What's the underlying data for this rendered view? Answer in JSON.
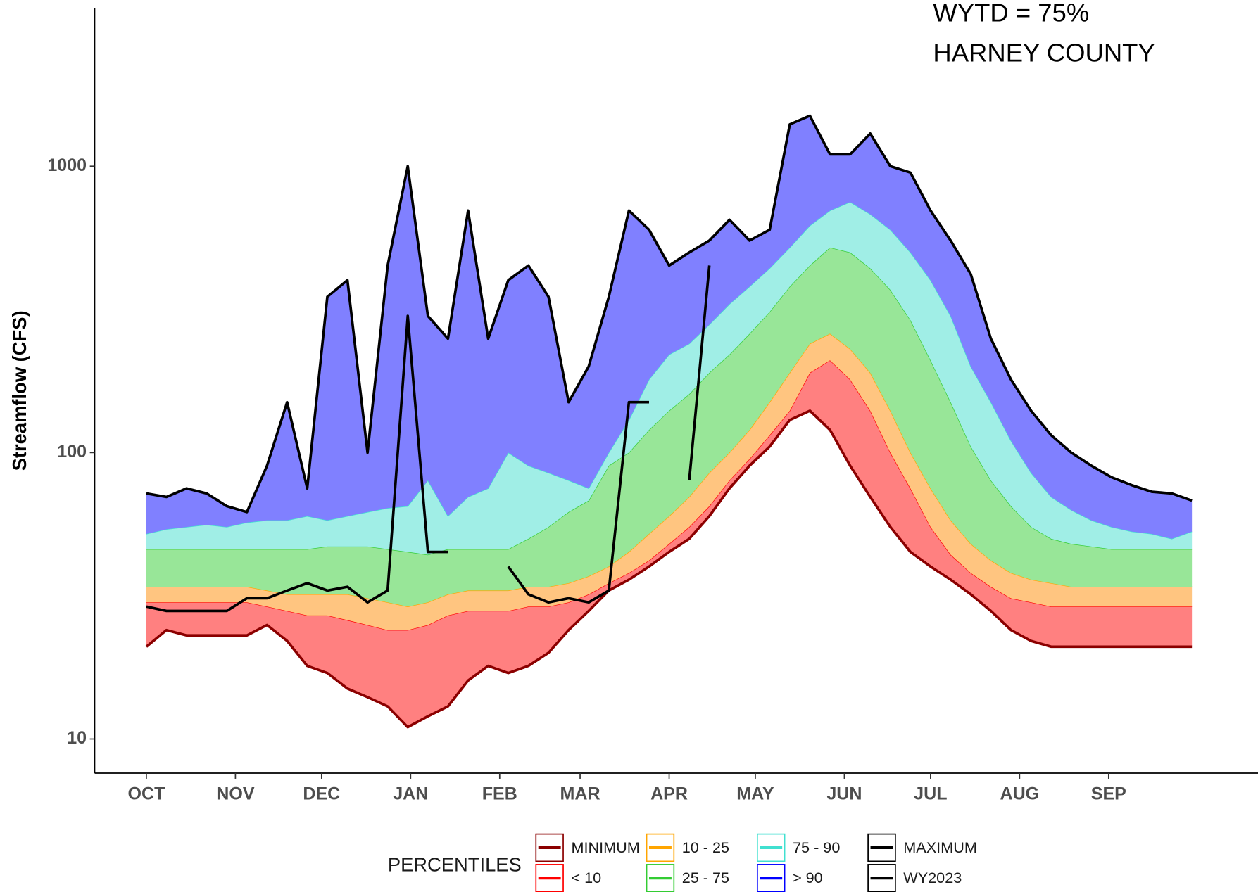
{
  "chart_data": {
    "type": "percentile-band",
    "annotations": [
      "WYTD = 75%",
      "HARNEY COUNTY"
    ],
    "y_label": "Streamflow (CFS)",
    "log_y": true,
    "xlim": [
      -18,
      387
    ],
    "xticks": [
      {
        "value": 0,
        "label": "OCT"
      },
      {
        "value": 31,
        "label": "NOV"
      },
      {
        "value": 61,
        "label": "DEC"
      },
      {
        "value": 92,
        "label": "JAN"
      },
      {
        "value": 123,
        "label": "FEB"
      },
      {
        "value": 151,
        "label": "MAR"
      },
      {
        "value": 182,
        "label": "APR"
      },
      {
        "value": 212,
        "label": "MAY"
      },
      {
        "value": 243,
        "label": "JUN"
      },
      {
        "value": 273,
        "label": "JUL"
      },
      {
        "value": 304,
        "label": "AUG"
      },
      {
        "value": 335,
        "label": "SEP"
      }
    ],
    "ylim": [
      7.8,
      3560
    ],
    "yticks": [
      10,
      100,
      1000
    ],
    "legend_title": "PERCENTILES",
    "x": [
      0,
      7,
      14,
      21,
      28,
      35,
      42,
      49,
      56,
      63,
      70,
      77,
      84,
      91,
      98,
      105,
      112,
      119,
      126,
      133,
      140,
      147,
      154,
      161,
      168,
      175,
      182,
      189,
      196,
      203,
      210,
      217,
      224,
      231,
      238,
      245,
      252,
      259,
      266,
      273,
      280,
      287,
      294,
      301,
      308,
      315,
      322,
      329,
      336,
      343,
      350,
      357,
      364
    ],
    "series": [
      {
        "name": "MINIMUM",
        "color": "#8b0000",
        "values": [
          21,
          24,
          23,
          23,
          23,
          23,
          25,
          22,
          18,
          17,
          15,
          14,
          13,
          11,
          12,
          13,
          16,
          18,
          17,
          18,
          20,
          24,
          28,
          33,
          36,
          40,
          45,
          50,
          60,
          75,
          90,
          105,
          130,
          140,
          120,
          90,
          70,
          55,
          45,
          40,
          36,
          32,
          28,
          24,
          22,
          21,
          21,
          21,
          21,
          21,
          21,
          21,
          21
        ]
      },
      {
        "name": "< 10",
        "color": "#ff0000",
        "fill": "#ff8080",
        "values": [
          30,
          30,
          30,
          30,
          30,
          30,
          29,
          28,
          27,
          27,
          26,
          25,
          24,
          24,
          25,
          27,
          28,
          28,
          28,
          29,
          29,
          30,
          32,
          35,
          38,
          42,
          48,
          55,
          65,
          80,
          95,
          115,
          140,
          190,
          210,
          180,
          140,
          100,
          75,
          55,
          44,
          38,
          34,
          31,
          30,
          29,
          29,
          29,
          29,
          29,
          29,
          29,
          29
        ]
      },
      {
        "name": "10 - 25",
        "color": "#ffa500",
        "fill": "#ffc580",
        "values": [
          34,
          34,
          34,
          34,
          34,
          34,
          33,
          32,
          32,
          32,
          32,
          31,
          30,
          29,
          30,
          32,
          33,
          33,
          33,
          34,
          34,
          35,
          37,
          40,
          45,
          52,
          60,
          70,
          85,
          100,
          120,
          150,
          190,
          240,
          260,
          230,
          190,
          140,
          100,
          75,
          58,
          48,
          42,
          38,
          36,
          35,
          34,
          34,
          34,
          34,
          34,
          34,
          34
        ]
      },
      {
        "name": "25 - 75",
        "color": "#33cc33",
        "fill": "#98e698",
        "values": [
          46,
          46,
          46,
          46,
          46,
          46,
          46,
          46,
          46,
          47,
          47,
          47,
          46,
          45,
          44,
          46,
          46,
          46,
          46,
          50,
          55,
          62,
          68,
          90,
          100,
          120,
          140,
          160,
          190,
          220,
          260,
          310,
          380,
          450,
          520,
          500,
          440,
          370,
          290,
          210,
          150,
          105,
          80,
          65,
          55,
          50,
          48,
          47,
          46,
          46,
          46,
          46,
          46
        ]
      },
      {
        "name": "75 - 90",
        "color": "#40e0d0",
        "fill": "#a0eee6",
        "values": [
          52,
          54,
          55,
          56,
          55,
          57,
          58,
          58,
          60,
          58,
          60,
          62,
          64,
          65,
          80,
          60,
          70,
          75,
          100,
          90,
          85,
          80,
          75,
          100,
          130,
          180,
          220,
          240,
          280,
          330,
          380,
          440,
          520,
          620,
          700,
          750,
          680,
          600,
          500,
          400,
          300,
          200,
          150,
          110,
          85,
          70,
          63,
          58,
          55,
          53,
          52,
          50,
          53
        ]
      },
      {
        "name": "> 90",
        "color": "#0000ff",
        "fill": "#8080ff"
      },
      {
        "name": "MAXIMUM",
        "color": "#000000",
        "values": [
          72,
          70,
          75,
          72,
          65,
          62,
          90,
          150,
          75,
          350,
          400,
          100,
          450,
          1000,
          300,
          250,
          700,
          250,
          400,
          450,
          350,
          150,
          200,
          350,
          700,
          600,
          450,
          500,
          550,
          650,
          550,
          600,
          1400,
          1500,
          1100,
          1100,
          1300,
          1000,
          950,
          700,
          550,
          420,
          250,
          180,
          140,
          115,
          100,
          90,
          82,
          77,
          73,
          72,
          68
        ]
      },
      {
        "name": "WY2023",
        "color": "#000000",
        "values": [
          29,
          28,
          28,
          28,
          28,
          31,
          31,
          33,
          35,
          33,
          34,
          30,
          33,
          300,
          45,
          45,
          null,
          null,
          40,
          32,
          30,
          31,
          30,
          33,
          150,
          150,
          null,
          80,
          450,
          null,
          null,
          null,
          null,
          null,
          null,
          null,
          null,
          null,
          null,
          null,
          null,
          null,
          null,
          null,
          null,
          null,
          null,
          null,
          null,
          null,
          null,
          null,
          null
        ]
      }
    ]
  }
}
